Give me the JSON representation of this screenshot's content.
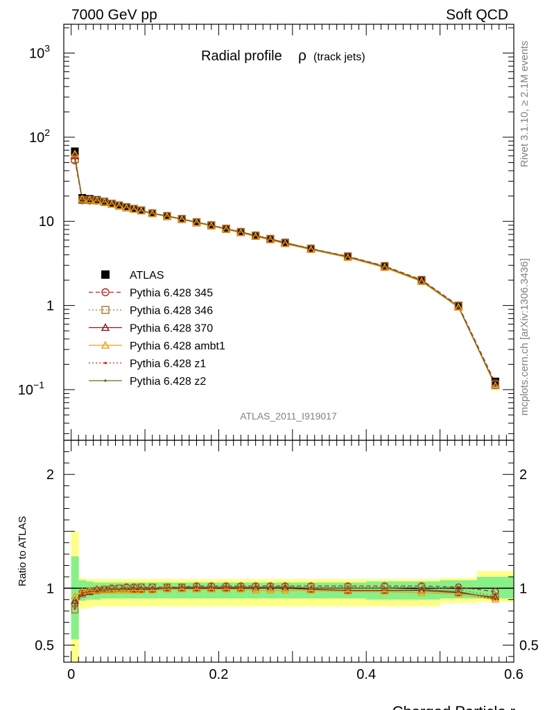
{
  "header": {
    "left": "7000 GeV pp",
    "right": "Soft QCD"
  },
  "side_text": {
    "upper": "Rivet 3.1.10, ≥ 2.1M events",
    "lower": "mcplots.cern.ch [arXiv:1306.3436]"
  },
  "chart_data": [
    {
      "type": "scatter",
      "title": "Radial profile",
      "title_symbol": "ρ",
      "title_suffix": "(track jets)",
      "watermark": "ATLAS_2011_I919017",
      "xlim": [
        -0.01,
        0.6
      ],
      "ylim": [
        0.025,
        2200
      ],
      "y_scale": "log",
      "y_ticks": [
        {
          "value": 1000,
          "base": "10",
          "exp": "3"
        },
        {
          "value": 100,
          "base": "10",
          "exp": "2"
        },
        {
          "value": 10,
          "base": "10",
          "exp": ""
        },
        {
          "value": 1,
          "base": "1",
          "exp": ""
        },
        {
          "value": 0.1,
          "base": "10",
          "exp": "−1"
        }
      ],
      "legend_position": "center-left",
      "x": [
        0.005,
        0.015,
        0.025,
        0.035,
        0.045,
        0.055,
        0.065,
        0.075,
        0.085,
        0.095,
        0.11,
        0.13,
        0.15,
        0.17,
        0.19,
        0.21,
        0.23,
        0.25,
        0.27,
        0.29,
        0.325,
        0.375,
        0.425,
        0.475,
        0.525,
        0.575
      ],
      "series": [
        {
          "name": "ATLAS",
          "color": "#000000",
          "marker": "square",
          "line": "none",
          "values": [
            68,
            19,
            18.5,
            18,
            17.2,
            16.3,
            15.5,
            14.8,
            14.1,
            13.5,
            12.5,
            11.5,
            10.6,
            9.7,
            8.9,
            8.1,
            7.4,
            6.7,
            6.1,
            5.5,
            4.7,
            3.8,
            2.9,
            2.0,
            1.0,
            0.125
          ]
        },
        {
          "name": "Pythia 6.428 345",
          "color": "#b22222",
          "marker": "circle",
          "line": "dashed",
          "values": [
            53,
            17.8,
            17.7,
            17.6,
            16.9,
            16.2,
            15.5,
            14.8,
            14.1,
            13.5,
            12.5,
            11.6,
            10.7,
            9.8,
            9.0,
            8.2,
            7.5,
            6.8,
            6.2,
            5.6,
            4.75,
            3.85,
            2.95,
            2.02,
            1.0,
            0.12
          ]
        },
        {
          "name": "Pythia 6.428 346",
          "color": "#a0782a",
          "marker": "square-open",
          "line": "dotted",
          "values": [
            55,
            18.0,
            17.9,
            17.7,
            17.0,
            16.2,
            15.5,
            14.8,
            14.1,
            13.5,
            12.5,
            11.6,
            10.7,
            9.8,
            9.0,
            8.2,
            7.5,
            6.8,
            6.2,
            5.6,
            4.75,
            3.85,
            2.95,
            2.02,
            0.99,
            0.115
          ]
        },
        {
          "name": "Pythia 6.428 370",
          "color": "#8b1a1a",
          "marker": "triangle",
          "line": "solid",
          "values": [
            60,
            18.2,
            18.0,
            17.7,
            16.8,
            15.9,
            15.1,
            14.4,
            13.8,
            13.3,
            12.4,
            11.5,
            10.6,
            9.7,
            8.9,
            8.1,
            7.4,
            6.7,
            6.1,
            5.5,
            4.65,
            3.72,
            2.85,
            1.95,
            0.96,
            0.112
          ]
        },
        {
          "name": "Pythia 6.428 ambt1",
          "color": "#f0a010",
          "marker": "triangle",
          "line": "solid",
          "values": [
            63,
            18.4,
            18.1,
            17.6,
            16.9,
            16.0,
            15.2,
            14.5,
            13.8,
            13.2,
            12.3,
            11.4,
            10.5,
            9.6,
            8.8,
            8.0,
            7.3,
            6.6,
            6.0,
            5.4,
            4.6,
            3.7,
            2.82,
            1.92,
            0.95,
            0.11
          ]
        },
        {
          "name": "Pythia 6.428 z1",
          "color": "#e02020",
          "marker": "dot",
          "line": "dotted",
          "values": [
            56,
            18.1,
            17.9,
            17.6,
            16.9,
            16.1,
            15.4,
            14.7,
            14.0,
            13.4,
            12.5,
            11.6,
            10.7,
            9.8,
            9.0,
            8.2,
            7.5,
            6.8,
            6.2,
            5.6,
            4.72,
            3.8,
            2.9,
            1.98,
            0.97,
            0.113
          ]
        },
        {
          "name": "Pythia 6.428 z2",
          "color": "#6b6b2a",
          "marker": "dot",
          "line": "solid",
          "values": [
            58,
            18.2,
            18.0,
            17.6,
            16.9,
            16.1,
            15.4,
            14.7,
            14.0,
            13.4,
            12.5,
            11.6,
            10.7,
            9.8,
            9.0,
            8.2,
            7.5,
            6.8,
            6.2,
            5.6,
            4.72,
            3.8,
            2.9,
            1.97,
            0.97,
            0.114
          ]
        }
      ]
    },
    {
      "type": "scatter",
      "ylabel": "Ratio to ATLAS",
      "xlabel": "Charged Particle r",
      "xlim": [
        -0.01,
        0.6
      ],
      "ylim": [
        0.35,
        2.3
      ],
      "x_ticks": [
        "0",
        "0.2",
        "0.4",
        "0.6"
      ],
      "y_ticks": [
        "0.5",
        "1",
        "2"
      ],
      "bands": {
        "x_edges": [
          0.0,
          0.01,
          0.02,
          0.03,
          0.04,
          0.05,
          0.06,
          0.07,
          0.08,
          0.09,
          0.1,
          0.12,
          0.14,
          0.16,
          0.18,
          0.2,
          0.22,
          0.24,
          0.26,
          0.28,
          0.3,
          0.35,
          0.4,
          0.45,
          0.5,
          0.55,
          0.6
        ],
        "green_lo": [
          0.55,
          0.89,
          0.9,
          0.9,
          0.91,
          0.91,
          0.91,
          0.91,
          0.91,
          0.91,
          0.91,
          0.91,
          0.91,
          0.91,
          0.91,
          0.91,
          0.91,
          0.91,
          0.91,
          0.91,
          0.91,
          0.91,
          0.9,
          0.9,
          0.91,
          0.91
        ],
        "green_hi": [
          1.28,
          1.07,
          1.06,
          1.05,
          1.05,
          1.05,
          1.05,
          1.05,
          1.05,
          1.05,
          1.05,
          1.05,
          1.05,
          1.05,
          1.05,
          1.05,
          1.05,
          1.05,
          1.05,
          1.05,
          1.05,
          1.05,
          1.06,
          1.06,
          1.07,
          1.1
        ],
        "yellow_lo": [
          0.35,
          0.82,
          0.83,
          0.84,
          0.84,
          0.84,
          0.84,
          0.84,
          0.84,
          0.84,
          0.84,
          0.84,
          0.84,
          0.84,
          0.84,
          0.84,
          0.84,
          0.84,
          0.84,
          0.84,
          0.84,
          0.84,
          0.84,
          0.84,
          0.87,
          0.88
        ],
        "yellow_hi": [
          1.5,
          1.09,
          1.08,
          1.08,
          1.08,
          1.08,
          1.08,
          1.08,
          1.08,
          1.08,
          1.08,
          1.08,
          1.08,
          1.08,
          1.08,
          1.08,
          1.08,
          1.08,
          1.08,
          1.08,
          1.08,
          1.08,
          1.08,
          1.08,
          1.09,
          1.15
        ]
      },
      "x": [
        0.005,
        0.015,
        0.025,
        0.035,
        0.045,
        0.055,
        0.065,
        0.075,
        0.085,
        0.095,
        0.11,
        0.13,
        0.15,
        0.17,
        0.19,
        0.21,
        0.23,
        0.25,
        0.27,
        0.29,
        0.325,
        0.375,
        0.425,
        0.475,
        0.525,
        0.575
      ],
      "series": [
        {
          "name": "Pythia 6.428 345",
          "values": [
            0.86,
            0.96,
            0.97,
            0.98,
            0.99,
            1.0,
            1.0,
            1.01,
            1.01,
            1.01,
            1.01,
            1.01,
            1.01,
            1.02,
            1.02,
            1.02,
            1.02,
            1.02,
            1.02,
            1.02,
            1.02,
            1.02,
            1.02,
            1.02,
            1.01,
            0.97
          ]
        },
        {
          "name": "Pythia 6.428 346",
          "values": [
            0.81,
            0.95,
            0.97,
            0.98,
            0.99,
            0.99,
            1.0,
            1.0,
            1.0,
            1.01,
            1.01,
            1.01,
            1.01,
            1.01,
            1.01,
            1.01,
            1.01,
            1.01,
            1.01,
            1.01,
            1.01,
            1.01,
            1.01,
            1.01,
            0.99,
            0.93
          ]
        },
        {
          "name": "Pythia 6.428 370",
          "values": [
            0.89,
            0.96,
            0.97,
            0.99,
            0.98,
            0.98,
            0.98,
            0.98,
            0.99,
            0.99,
            0.99,
            1.0,
            1.0,
            1.0,
            1.0,
            1.0,
            1.0,
            1.0,
            1.0,
            1.0,
            0.99,
            0.98,
            0.98,
            0.98,
            0.96,
            0.92
          ]
        },
        {
          "name": "Pythia 6.428 ambt1",
          "values": [
            0.93,
            0.97,
            0.98,
            0.98,
            0.98,
            0.98,
            0.98,
            0.98,
            0.98,
            0.98,
            0.98,
            0.99,
            0.99,
            0.99,
            0.99,
            0.99,
            0.99,
            0.98,
            0.98,
            0.98,
            0.98,
            0.97,
            0.97,
            0.96,
            0.95,
            0.9
          ]
        },
        {
          "name": "Pythia 6.428 z1",
          "values": [
            0.82,
            0.95,
            0.97,
            0.98,
            0.98,
            0.99,
            0.99,
            0.99,
            1.0,
            1.0,
            1.0,
            1.0,
            1.01,
            1.01,
            1.01,
            1.01,
            1.01,
            1.01,
            1.01,
            1.01,
            1.0,
            1.0,
            1.0,
            0.99,
            0.97,
            0.9
          ]
        },
        {
          "name": "Pythia 6.428 z2",
          "values": [
            0.85,
            0.96,
            0.97,
            0.98,
            0.98,
            0.99,
            0.99,
            0.99,
            1.0,
            1.0,
            1.0,
            1.0,
            1.01,
            1.01,
            1.01,
            1.01,
            1.01,
            1.01,
            1.01,
            1.01,
            1.0,
            1.0,
            1.0,
            0.99,
            0.97,
            0.91
          ]
        }
      ]
    }
  ]
}
